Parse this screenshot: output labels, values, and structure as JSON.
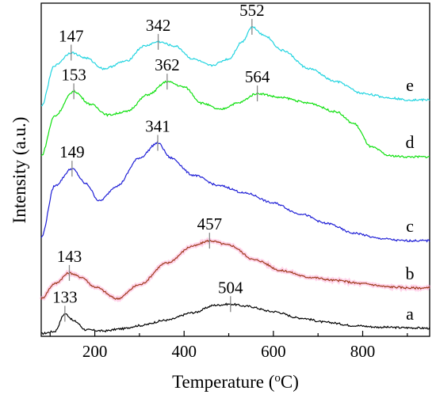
{
  "chart_data": {
    "type": "line",
    "xlabel": "Temperature (",
    "xlabel_sup": "o",
    "xlabel_unit": "C)",
    "ylabel": "Intensity (a.u.)",
    "xlim": [
      80,
      950
    ],
    "x_ticks": [
      200,
      400,
      600,
      800
    ],
    "grid": false,
    "legend": "none",
    "series": [
      {
        "curve": "a",
        "color": "#000000",
        "points": [
          [
            80,
            0.25
          ],
          [
            110,
            0.45
          ],
          [
            133,
            2.1
          ],
          [
            155,
            1.4
          ],
          [
            180,
            0.6
          ],
          [
            220,
            0.5
          ],
          [
            260,
            0.7
          ],
          [
            300,
            1.0
          ],
          [
            360,
            1.5
          ],
          [
            420,
            2.2
          ],
          [
            470,
            2.9
          ],
          [
            504,
            3.0
          ],
          [
            540,
            2.8
          ],
          [
            600,
            2.3
          ],
          [
            660,
            1.7
          ],
          [
            720,
            1.3
          ],
          [
            780,
            1.0
          ],
          [
            840,
            0.85
          ],
          [
            900,
            0.8
          ],
          [
            950,
            0.75
          ]
        ],
        "peaks": [
          {
            "x": 133,
            "label": "133"
          },
          {
            "x": 504,
            "label": "504"
          }
        ]
      },
      {
        "curve": "b",
        "color": "#9e3a1a",
        "points": [
          [
            80,
            3.5
          ],
          [
            110,
            4.9
          ],
          [
            143,
            5.9
          ],
          [
            170,
            5.5
          ],
          [
            200,
            4.6
          ],
          [
            250,
            3.5
          ],
          [
            300,
            4.8
          ],
          [
            360,
            6.8
          ],
          [
            420,
            8.4
          ],
          [
            457,
            8.9
          ],
          [
            500,
            8.5
          ],
          [
            560,
            7.1
          ],
          [
            620,
            6.1
          ],
          [
            680,
            5.5
          ],
          [
            740,
            5.2
          ],
          [
            800,
            4.9
          ],
          [
            860,
            4.6
          ],
          [
            910,
            4.5
          ],
          [
            950,
            4.5
          ]
        ],
        "peaks": [
          {
            "x": 143,
            "label": "143"
          },
          {
            "x": 457,
            "label": "457"
          }
        ]
      },
      {
        "curve": "c",
        "color": "#1f1fd6",
        "points": [
          [
            80,
            9.2
          ],
          [
            110,
            14.0
          ],
          [
            149,
            15.6
          ],
          [
            180,
            14.2
          ],
          [
            210,
            12.6
          ],
          [
            250,
            14.0
          ],
          [
            300,
            16.6
          ],
          [
            341,
            18.0
          ],
          [
            370,
            16.6
          ],
          [
            420,
            15.0
          ],
          [
            480,
            14.0
          ],
          [
            540,
            13.3
          ],
          [
            600,
            12.4
          ],
          [
            660,
            11.4
          ],
          [
            720,
            10.5
          ],
          [
            780,
            9.6
          ],
          [
            840,
            9.1
          ],
          [
            890,
            8.9
          ],
          [
            950,
            8.9
          ]
        ],
        "peaks": [
          {
            "x": 149,
            "label": "149"
          },
          {
            "x": 341,
            "label": "341"
          }
        ]
      },
      {
        "curve": "d",
        "color": "#10e010",
        "points": [
          [
            80,
            16.8
          ],
          [
            110,
            20.5
          ],
          [
            153,
            22.8
          ],
          [
            190,
            21.6
          ],
          [
            230,
            20.6
          ],
          [
            270,
            20.9
          ],
          [
            320,
            22.5
          ],
          [
            362,
            23.7
          ],
          [
            400,
            23.2
          ],
          [
            440,
            21.7
          ],
          [
            480,
            21.1
          ],
          [
            520,
            21.7
          ],
          [
            564,
            22.6
          ],
          [
            620,
            22.2
          ],
          [
            680,
            21.7
          ],
          [
            740,
            20.9
          ],
          [
            780,
            19.8
          ],
          [
            820,
            17.6
          ],
          [
            860,
            16.8
          ],
          [
            900,
            16.7
          ],
          [
            950,
            16.7
          ]
        ],
        "peaks": [
          {
            "x": 153,
            "label": "153"
          },
          {
            "x": 362,
            "label": "362"
          },
          {
            "x": 564,
            "label": "564"
          }
        ]
      },
      {
        "curve": "e",
        "color": "#22d4e0",
        "points": [
          [
            80,
            21.4
          ],
          [
            110,
            25.2
          ],
          [
            147,
            26.4
          ],
          [
            180,
            25.9
          ],
          [
            220,
            24.9
          ],
          [
            270,
            25.6
          ],
          [
            310,
            27.0
          ],
          [
            342,
            27.4
          ],
          [
            380,
            27.0
          ],
          [
            420,
            25.8
          ],
          [
            460,
            25.2
          ],
          [
            500,
            25.8
          ],
          [
            530,
            27.4
          ],
          [
            552,
            28.8
          ],
          [
            580,
            28.0
          ],
          [
            620,
            26.6
          ],
          [
            680,
            24.9
          ],
          [
            740,
            23.7
          ],
          [
            800,
            22.6
          ],
          [
            860,
            22.2
          ],
          [
            900,
            22.0
          ],
          [
            950,
            22.0
          ]
        ],
        "peaks": [
          {
            "x": 147,
            "label": "147"
          },
          {
            "x": 342,
            "label": "342"
          },
          {
            "x": 552,
            "label": "552"
          }
        ]
      }
    ]
  }
}
